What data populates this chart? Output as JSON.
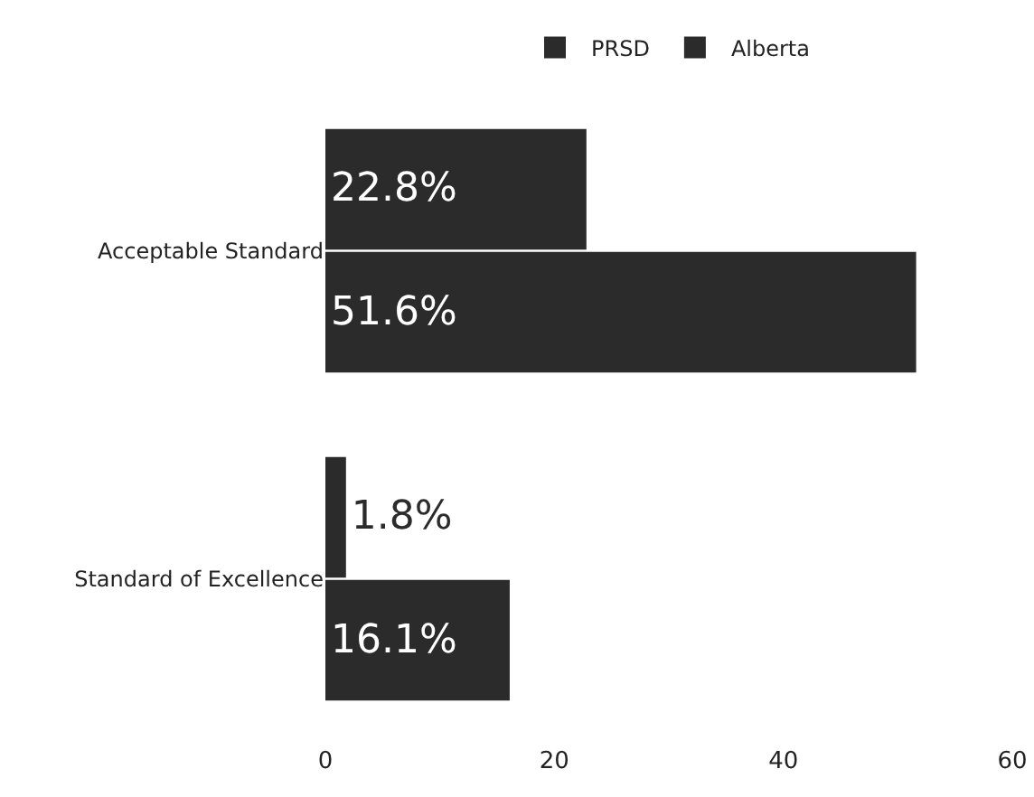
{
  "chart_data": {
    "type": "bar",
    "orientation": "horizontal",
    "categories": [
      "Acceptable Standard",
      "Standard of Excellence"
    ],
    "series": [
      {
        "name": "PRSD",
        "color": "#2b2b2b",
        "values": [
          22.8,
          1.8
        ],
        "value_labels": [
          "22.8%",
          "1.8%"
        ]
      },
      {
        "name": "Alberta",
        "color": "#2b2b2b",
        "values": [
          51.6,
          16.1
        ],
        "value_labels": [
          "51.6%",
          "16.1%"
        ]
      }
    ],
    "xlim": [
      0,
      60
    ],
    "xticks": [
      0,
      20,
      40,
      60
    ],
    "grid": false,
    "legend": "top"
  }
}
